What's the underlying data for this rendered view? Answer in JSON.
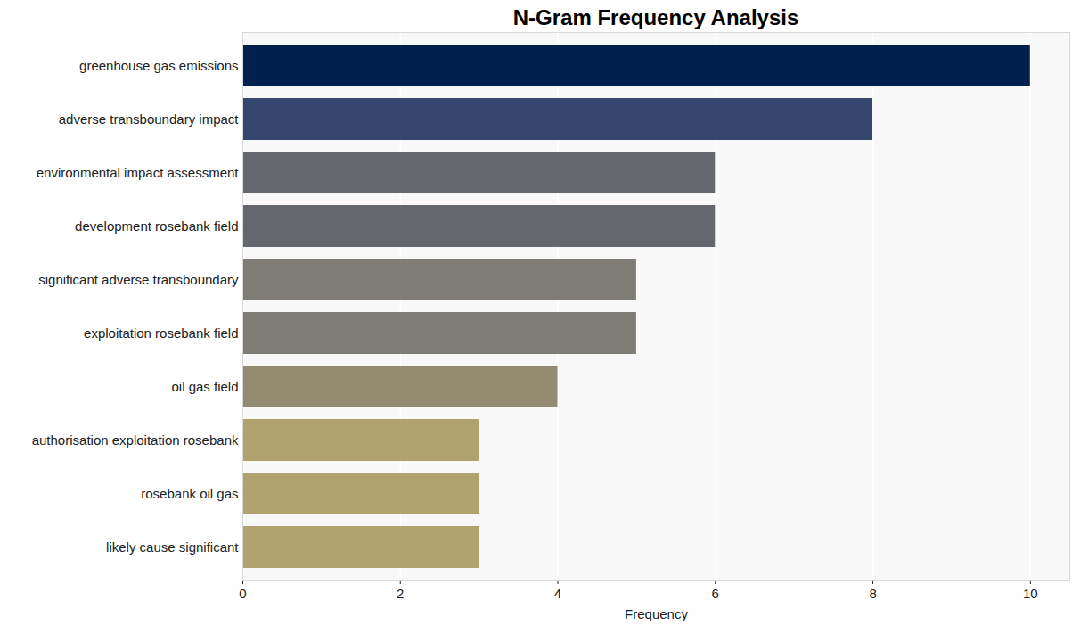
{
  "chart_data": {
    "type": "bar",
    "title": "N-Gram Frequency Analysis",
    "orientation": "horizontal",
    "x_label": "Frequency",
    "categories": [
      "greenhouse gas emissions",
      "adverse transboundary impact",
      "environmental impact assessment",
      "development rosebank field",
      "significant adverse transboundary",
      "exploitation rosebank field",
      "oil gas field",
      "authorisation exploitation rosebank",
      "rosebank oil gas",
      "likely cause significant"
    ],
    "values": [
      10,
      8,
      6,
      6,
      5,
      5,
      4,
      3,
      3,
      3
    ],
    "colors": [
      "#00214e",
      "#37466e",
      "#65676f",
      "#65676f",
      "#7f7c75",
      "#7f7c75",
      "#948c72",
      "#afa26f",
      "#afa26f",
      "#afa26f"
    ],
    "xlim": [
      0,
      10.5
    ],
    "xticks": [
      0,
      2,
      4,
      6,
      8,
      10
    ],
    "grid": true
  }
}
